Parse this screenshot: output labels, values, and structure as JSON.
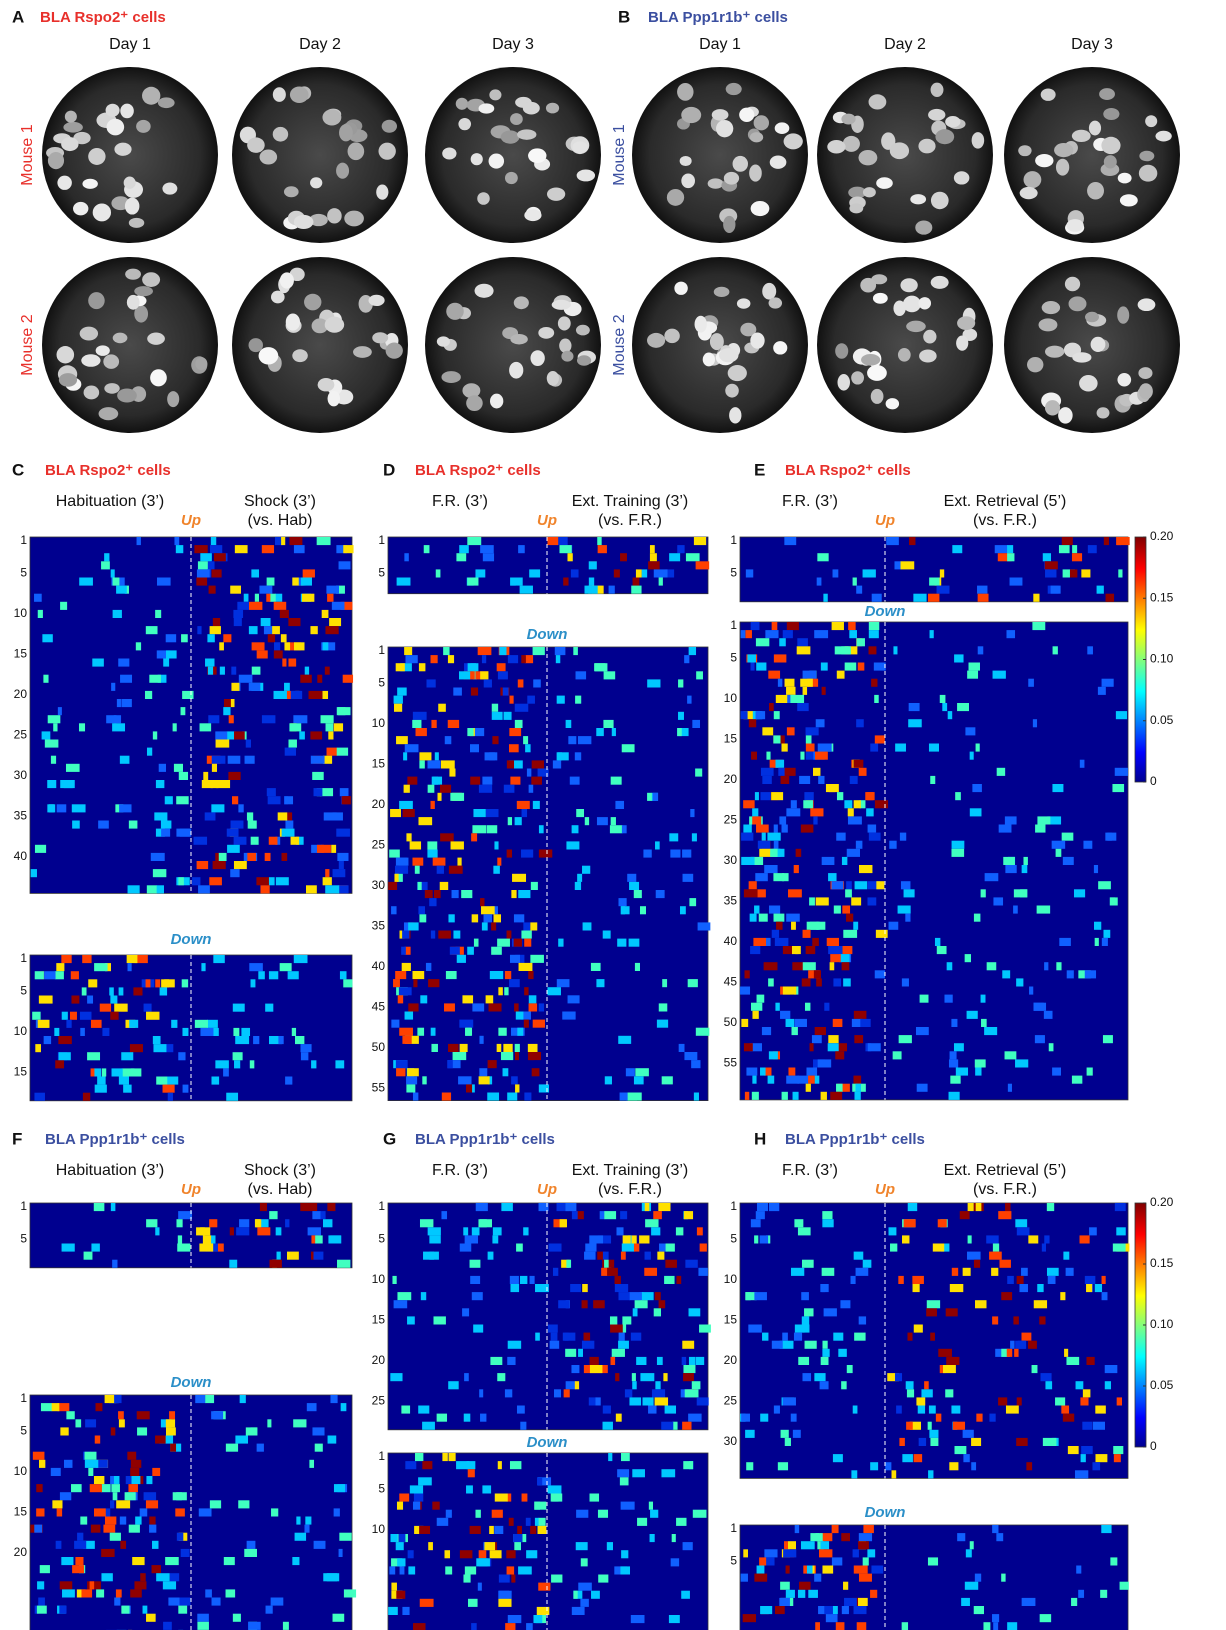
{
  "figure": {
    "imaging": [
      {
        "letter": "A",
        "title": "BLA Rspo2⁺ cells",
        "days": [
          "Day 1",
          "Day 2",
          "Day 3"
        ],
        "mice": [
          "Mouse 1",
          "Mouse 2"
        ]
      },
      {
        "letter": "B",
        "title": "BLA Ppp1r1b⁺ cells",
        "days": [
          "Day 1",
          "Day 2",
          "Day 3"
        ],
        "mice": [
          "Mouse 1",
          "Mouse 2"
        ]
      }
    ],
    "heatmaps": [
      {
        "letter": "C",
        "title": "BLA Rspo2⁺ cells",
        "left_label": "Habituation (3’)",
        "right_label": "Shock (3’)",
        "right_sublabel": "(vs. Hab)",
        "up_label": "Up",
        "up_ticks": [
          1,
          5,
          10,
          15,
          20,
          25,
          30,
          35,
          40
        ],
        "down_label": "Down",
        "down_ticks": [
          1,
          5,
          10,
          15
        ]
      },
      {
        "letter": "D",
        "title": "BLA Rspo2⁺ cells",
        "left_label": "F.R. (3’)",
        "right_label": "Ext. Training (3’)",
        "right_sublabel": "(vs. F.R.)",
        "up_label": "Up",
        "up_ticks": [
          1,
          5
        ],
        "down_label": "Down",
        "down_ticks": [
          1,
          5,
          10,
          15,
          20,
          25,
          30,
          35,
          40,
          45,
          50,
          55
        ]
      },
      {
        "letter": "E",
        "title": "BLA Rspo2⁺ cells",
        "left_label": "F.R. (3’)",
        "right_label": "Ext. Retrieval (5’)",
        "right_sublabel": "(vs. F.R.)",
        "up_label": "Up",
        "up_ticks": [
          1,
          5
        ],
        "down_label": "Down",
        "down_ticks": [
          1,
          5,
          10,
          15,
          20,
          25,
          30,
          35,
          40,
          45,
          50,
          55
        ],
        "colorbar_ticks": [
          {
            "value": 0.2,
            "label": "0.20"
          },
          {
            "value": 0.15,
            "label": "0.15"
          },
          {
            "value": 0.1,
            "label": "0.10"
          },
          {
            "value": 0.05,
            "label": "0.05"
          },
          0
        ]
      },
      {
        "letter": "F",
        "title": "BLA Ppp1r1b⁺ cells",
        "left_label": "Habituation (3’)",
        "right_label": "Shock (3’)",
        "right_sublabel": "(vs. Hab)",
        "up_label": "Up",
        "up_ticks": [
          1,
          5
        ],
        "down_label": "Down",
        "down_ticks": [
          1,
          5,
          10,
          15,
          20
        ]
      },
      {
        "letter": "G",
        "title": "BLA Ppp1r1b⁺ cells",
        "left_label": "F.R. (3’)",
        "right_label": "Ext. Training (3’)",
        "right_sublabel": "(vs. F.R.)",
        "up_label": "Up",
        "up_ticks": [
          1,
          5,
          10,
          15,
          20,
          25
        ],
        "down_label": "Down",
        "down_ticks": [
          1,
          5,
          10
        ]
      },
      {
        "letter": "H",
        "title": "BLA Ppp1r1b⁺ cells",
        "left_label": "F.R. (3’)",
        "right_label": "Ext. Retrieval (5’)",
        "right_sublabel": "(vs. F.R.)",
        "up_label": "Up",
        "up_ticks": [
          1,
          5,
          10,
          15,
          20,
          25,
          30
        ],
        "down_label": "Down",
        "down_ticks": [
          1,
          5
        ],
        "colorbar_ticks": [
          {
            "value": 0.2,
            "label": "0.20"
          },
          {
            "value": 0.15,
            "label": "0.15"
          },
          {
            "value": 0.1,
            "label": "0.10"
          },
          {
            "value": 0.05,
            "label": "0.05"
          },
          0
        ]
      }
    ]
  }
}
